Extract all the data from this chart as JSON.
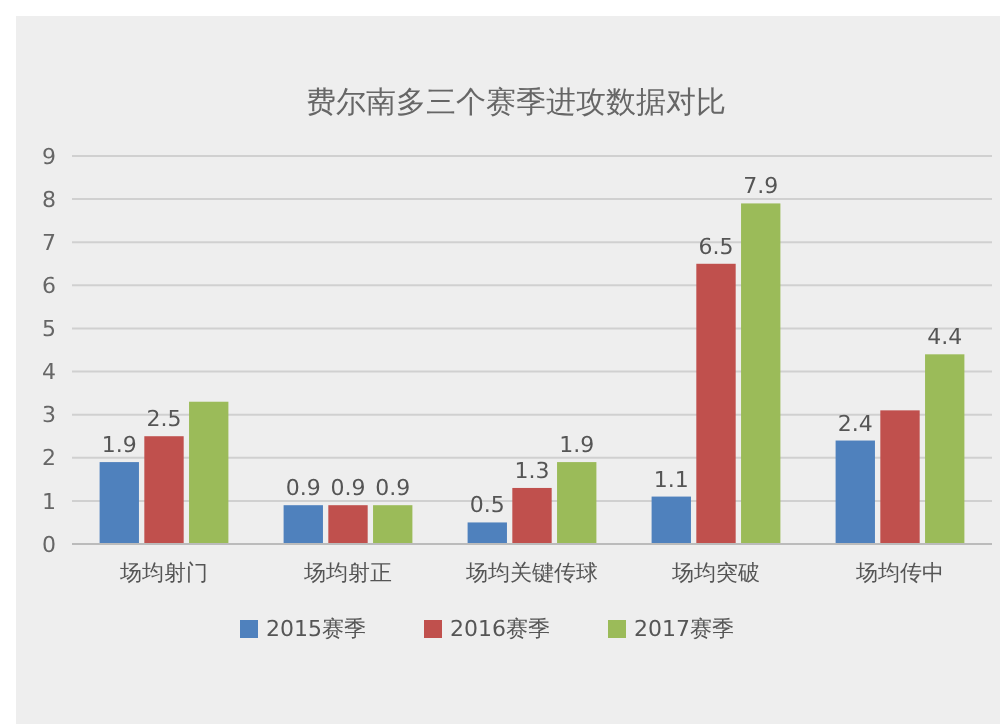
{
  "chart_data": {
    "type": "bar",
    "title": "费尔南多三个赛季进攻数据对比",
    "categories": [
      "场均射门",
      "场均射正",
      "场均关键传球",
      "场均突破",
      "场均传中"
    ],
    "series": [
      {
        "name": "2015赛季",
        "color": "#4f81bd",
        "values": [
          1.9,
          0.9,
          0.5,
          1.1,
          2.4
        ],
        "value_labels": [
          "1.9",
          "0.9",
          "0.5",
          "1.1",
          "2.4"
        ]
      },
      {
        "name": "2016赛季",
        "color": "#c0504d",
        "values": [
          2.5,
          0.9,
          1.3,
          6.5,
          3.1
        ],
        "value_labels": [
          "2.5",
          "0.9",
          "1.3",
          "6.5",
          null
        ]
      },
      {
        "name": "2017赛季",
        "color": "#9bbb59",
        "values": [
          3.3,
          0.9,
          1.9,
          7.9,
          4.4
        ],
        "value_labels": [
          null,
          "0.9",
          "1.9",
          "7.9",
          "4.4"
        ]
      }
    ],
    "ylim": [
      0,
      9
    ],
    "yticks": [
      0,
      1,
      2,
      3,
      4,
      5,
      6,
      7,
      8,
      9
    ],
    "grid": "y",
    "legend": "bottom"
  }
}
